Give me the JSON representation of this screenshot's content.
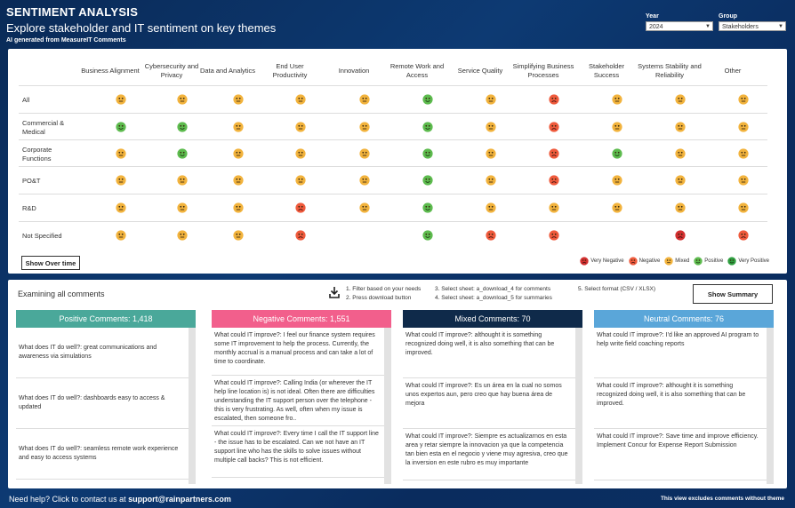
{
  "header": {
    "title": "SENTIMENT ANALYSIS",
    "subtitle": "Explore stakeholder and IT sentiment on key themes",
    "note": "AI generated from MeasureIT Comments"
  },
  "filters": {
    "year_label": "Year",
    "year_value": "2024",
    "group_label": "Group",
    "group_value": "Stakeholders"
  },
  "matrix": {
    "columns": [
      "Business Alignment",
      "Cybersecurity and Privacy",
      "Data and Analytics",
      "End User Productivity",
      "Innovation",
      "Remote Work and Access",
      "Service Quality",
      "Simplifying Business Processes",
      "Stakeholder Success",
      "Systems Stability and Reliability",
      "Other"
    ],
    "rows": [
      {
        "label": "All",
        "values": [
          "mixed",
          "mixed",
          "mixed",
          "mixed",
          "mixed",
          "positive",
          "mixed",
          "negative",
          "mixed",
          "mixed",
          "mixed"
        ]
      },
      {
        "label": "Commercial & Medical",
        "values": [
          "positive",
          "positive",
          "mixed",
          "mixed",
          "mixed",
          "positive",
          "mixed",
          "negative",
          "mixed",
          "mixed",
          "mixed"
        ]
      },
      {
        "label": "Corporate Functions",
        "values": [
          "mixed",
          "positive",
          "mixed",
          "mixed",
          "mixed",
          "positive",
          "mixed",
          "negative",
          "positive",
          "mixed",
          "mixed"
        ]
      },
      {
        "label": "PO&T",
        "values": [
          "mixed",
          "mixed",
          "mixed",
          "mixed",
          "mixed",
          "positive",
          "mixed",
          "negative",
          "mixed",
          "mixed",
          "mixed"
        ]
      },
      {
        "label": "R&D",
        "values": [
          "mixed",
          "mixed",
          "mixed",
          "negative",
          "mixed",
          "positive",
          "mixed",
          "mixed",
          "mixed",
          "mixed",
          "mixed"
        ]
      },
      {
        "label": "Not Specified",
        "values": [
          "mixed",
          "mixed",
          "mixed",
          "negative",
          "",
          "positive",
          "negative",
          "negative",
          "",
          "very_negative",
          "negative"
        ]
      }
    ],
    "show_over_time_label": "Show Over time",
    "legend": [
      {
        "key": "very_negative",
        "label": "Very Negative"
      },
      {
        "key": "negative",
        "label": "Negative"
      },
      {
        "key": "mixed",
        "label": "Mixed"
      },
      {
        "key": "positive",
        "label": "Positive"
      },
      {
        "key": "very_positive",
        "label": "Very Positive"
      }
    ],
    "face_colors": {
      "very_negative": "#d32f2f",
      "negative": "#ef5a3c",
      "mixed": "#f2b33d",
      "positive": "#5dbb4e",
      "very_positive": "#2e9e3f"
    }
  },
  "comments": {
    "title": "Examining all comments",
    "steps_a": [
      "1. Filter based on your needs",
      "2. Press download button"
    ],
    "steps_b": [
      "3. Select sheet: a_download_4 for comments",
      "4. Select sheet: a_download_5 for summaries"
    ],
    "steps_c": "5. Select format (CSV / XLSX)",
    "show_summary_label": "Show Summary",
    "columns": [
      {
        "header": "Positive Comments: 1,418",
        "color": "#4aa89a",
        "items": [
          "What does IT do well?: great communications and awareness via simulations",
          "What does IT do well?: dashboards easy to access & updated",
          "What does IT do well?: seamless remote work experience and easy to access systems"
        ]
      },
      {
        "header": "Negative Comments: 1,551",
        "color": "#f25f8c",
        "items": [
          "What could IT improve?: I feel our finance system requires some IT improvement to help the process. Currently, the monthly accrual is a manual process and can take a lot of time to coordinate.",
          "What could IT improve?: Calling India (or wherever the IT help line location is) is not ideal. Often there are difficulties understanding the IT support person over the telephone - this is very frustrating. As well, often when my issue is escalated, then someone fro..",
          "What could IT improve?: Every time I call the IT support line - the issue has to be escalated. Can we not have an IT support line who has the skills to solve issues without multiple call backs? This is not efficient."
        ]
      },
      {
        "header": "Mixed Comments: 70",
        "color": "#0f2a4a",
        "items": [
          "What could IT improve?: althought it is something recognized doing well, it is also something that can be improved.",
          "What could IT improve?: Es un área en la cual no somos unos expertos aun, pero creo que hay buena área de mejora",
          "What could IT improve?: Siempre es actualizarnos en esta area y retar siempre la innovacion ya que la competencia tan bien esta en el negocio y viene muy agresiva, creo que la inversion en este rubro es muy importante"
        ]
      },
      {
        "header": "Neutral Comments: 76",
        "color": "#5aa6d9",
        "items": [
          "What could IT improve?: I'd like an approved AI program to help write field coaching reports",
          "What could IT improve?: althought it is something recognized doing well, it is also something that can be improved.",
          "What could IT improve?: Save time and improve efficiency. Implement Concur for Expense Report Submission"
        ]
      }
    ]
  },
  "footer": {
    "help_prefix": "Need help? Click to contact us at ",
    "email": "support@rainpartners.com",
    "note": "This view excludes comments without theme"
  }
}
